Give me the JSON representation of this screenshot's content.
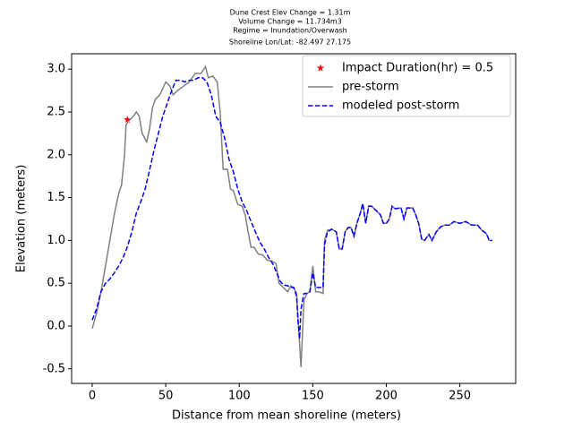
{
  "chart_data": {
    "type": "line",
    "title": [
      "Dune Crest Elev Change = 1.31m",
      "Volume Change = 11.734m3",
      "Regime = Inundation/Overwash",
      "Shoreline Lon/Lat: -82.497 27.175"
    ],
    "xlabel": "Distance from mean shoreline (meters)",
    "ylabel": "Elevation (meters)",
    "xlim": [
      -14,
      288
    ],
    "ylim": [
      -0.67,
      3.18
    ],
    "xticks": [
      0,
      50,
      100,
      150,
      200,
      250
    ],
    "yticks": [
      -0.5,
      {
        "value": 0,
        "label": "0.0"
      },
      0.5,
      {
        "value": 1,
        "label": "1.0"
      },
      1.5,
      {
        "value": 2,
        "label": "2.0"
      },
      2.5,
      {
        "value": 3,
        "label": "3.0"
      }
    ],
    "legend": "upper right",
    "series": [
      {
        "name": "Impact Duration(hr) = 0.5",
        "color": "#ff0000",
        "marker": "star",
        "x": [
          24
        ],
        "values": [
          2.41
        ]
      },
      {
        "name": "pre-storm",
        "color": "#808080",
        "style": "solid",
        "x": [
          0,
          3,
          6,
          9,
          12,
          15,
          18,
          20,
          22,
          23,
          25,
          28,
          30,
          32,
          34,
          37,
          39,
          41,
          43,
          46,
          50,
          53,
          55,
          58,
          62,
          66,
          70,
          74,
          77,
          79,
          82,
          85,
          87,
          89,
          92,
          94,
          96,
          99,
          102,
          104,
          106,
          108,
          110,
          113,
          116,
          119,
          122,
          125,
          127,
          130,
          133,
          135,
          137,
          139,
          140,
          142,
          144,
          146,
          148,
          150,
          152,
          154,
          157,
          158,
          160,
          163,
          166,
          168,
          170,
          172,
          174,
          176,
          178,
          180,
          182,
          184,
          186,
          188,
          190,
          193,
          196,
          198,
          200,
          202,
          204,
          206,
          210,
          212,
          214,
          218,
          220,
          222,
          224,
          226,
          229,
          231,
          234,
          237,
          240,
          243,
          246,
          250,
          254,
          258,
          262,
          265,
          268,
          270,
          272
        ],
        "values": [
          -0.03,
          0.15,
          0.4,
          0.7,
          1.0,
          1.3,
          1.55,
          1.65,
          2.0,
          2.35,
          2.4,
          2.45,
          2.5,
          2.45,
          2.25,
          2.15,
          2.3,
          2.55,
          2.65,
          2.7,
          2.85,
          2.8,
          2.7,
          2.75,
          2.8,
          2.85,
          2.95,
          2.95,
          3.03,
          2.9,
          2.92,
          2.85,
          2.5,
          1.83,
          1.83,
          1.6,
          1.58,
          1.42,
          1.4,
          1.3,
          1.1,
          0.92,
          0.92,
          0.84,
          0.83,
          0.77,
          0.76,
          0.73,
          0.5,
          0.45,
          0.4,
          0.47,
          0.45,
          0.38,
          0.1,
          -0.48,
          0.3,
          0.38,
          0.4,
          0.7,
          0.4,
          0.4,
          0.38,
          1.0,
          1.12,
          1.13,
          1.1,
          0.9,
          0.9,
          1.1,
          1.15,
          1.15,
          1.05,
          1.2,
          1.3,
          1.43,
          1.2,
          1.4,
          1.4,
          1.35,
          1.3,
          1.2,
          1.2,
          1.25,
          1.4,
          1.37,
          1.38,
          1.25,
          1.38,
          1.38,
          1.3,
          1.2,
          1.02,
          1.0,
          1.07,
          1.0,
          1.1,
          1.16,
          1.18,
          1.18,
          1.22,
          1.2,
          1.22,
          1.18,
          1.18,
          1.12,
          1.08,
          1.0,
          1.0
        ]
      },
      {
        "name": "modeled post-storm",
        "color": "#0000ff",
        "style": "dashed",
        "x": [
          0,
          3,
          6,
          9,
          12,
          15,
          18,
          21,
          24,
          27,
          30,
          33,
          36,
          39,
          42,
          45,
          48,
          51,
          54,
          57,
          60,
          63,
          66,
          69,
          72,
          75,
          78,
          81,
          84,
          87,
          90,
          93,
          96,
          99,
          102,
          105,
          108,
          111,
          114,
          117,
          120,
          123,
          126,
          128,
          130,
          133,
          135,
          137,
          139,
          140,
          141,
          142,
          144,
          146,
          148,
          150,
          152,
          154,
          157,
          158,
          160,
          163,
          166,
          168,
          170,
          172,
          174,
          176,
          178,
          180,
          182,
          184,
          186,
          188,
          190,
          193,
          196,
          198,
          200,
          202,
          204,
          206,
          210,
          212,
          214,
          218,
          220,
          222,
          224,
          226,
          229,
          231,
          234,
          237,
          240,
          243,
          246,
          250,
          254,
          258,
          262,
          265,
          268,
          270,
          272
        ],
        "values": [
          0.07,
          0.2,
          0.4,
          0.5,
          0.55,
          0.62,
          0.7,
          0.8,
          0.93,
          1.1,
          1.32,
          1.45,
          1.6,
          1.82,
          2.05,
          2.25,
          2.45,
          2.6,
          2.75,
          2.87,
          2.87,
          2.85,
          2.87,
          2.87,
          2.9,
          2.9,
          2.85,
          2.7,
          2.45,
          2.38,
          2.2,
          1.95,
          1.8,
          1.6,
          1.45,
          1.35,
          1.22,
          1.1,
          0.98,
          0.9,
          0.8,
          0.72,
          0.6,
          0.52,
          0.48,
          0.47,
          0.45,
          0.45,
          0.35,
          0.05,
          -0.15,
          0.2,
          0.38,
          0.38,
          0.4,
          0.62,
          0.45,
          0.45,
          0.45,
          0.95,
          1.1,
          1.13,
          1.1,
          0.9,
          0.9,
          1.1,
          1.15,
          1.15,
          1.05,
          1.2,
          1.3,
          1.43,
          1.2,
          1.4,
          1.4,
          1.35,
          1.3,
          1.2,
          1.2,
          1.25,
          1.4,
          1.37,
          1.38,
          1.25,
          1.38,
          1.38,
          1.3,
          1.2,
          1.02,
          1.0,
          1.07,
          1.0,
          1.1,
          1.16,
          1.18,
          1.18,
          1.22,
          1.2,
          1.22,
          1.18,
          1.18,
          1.12,
          1.08,
          1.0,
          1.0
        ]
      }
    ]
  }
}
